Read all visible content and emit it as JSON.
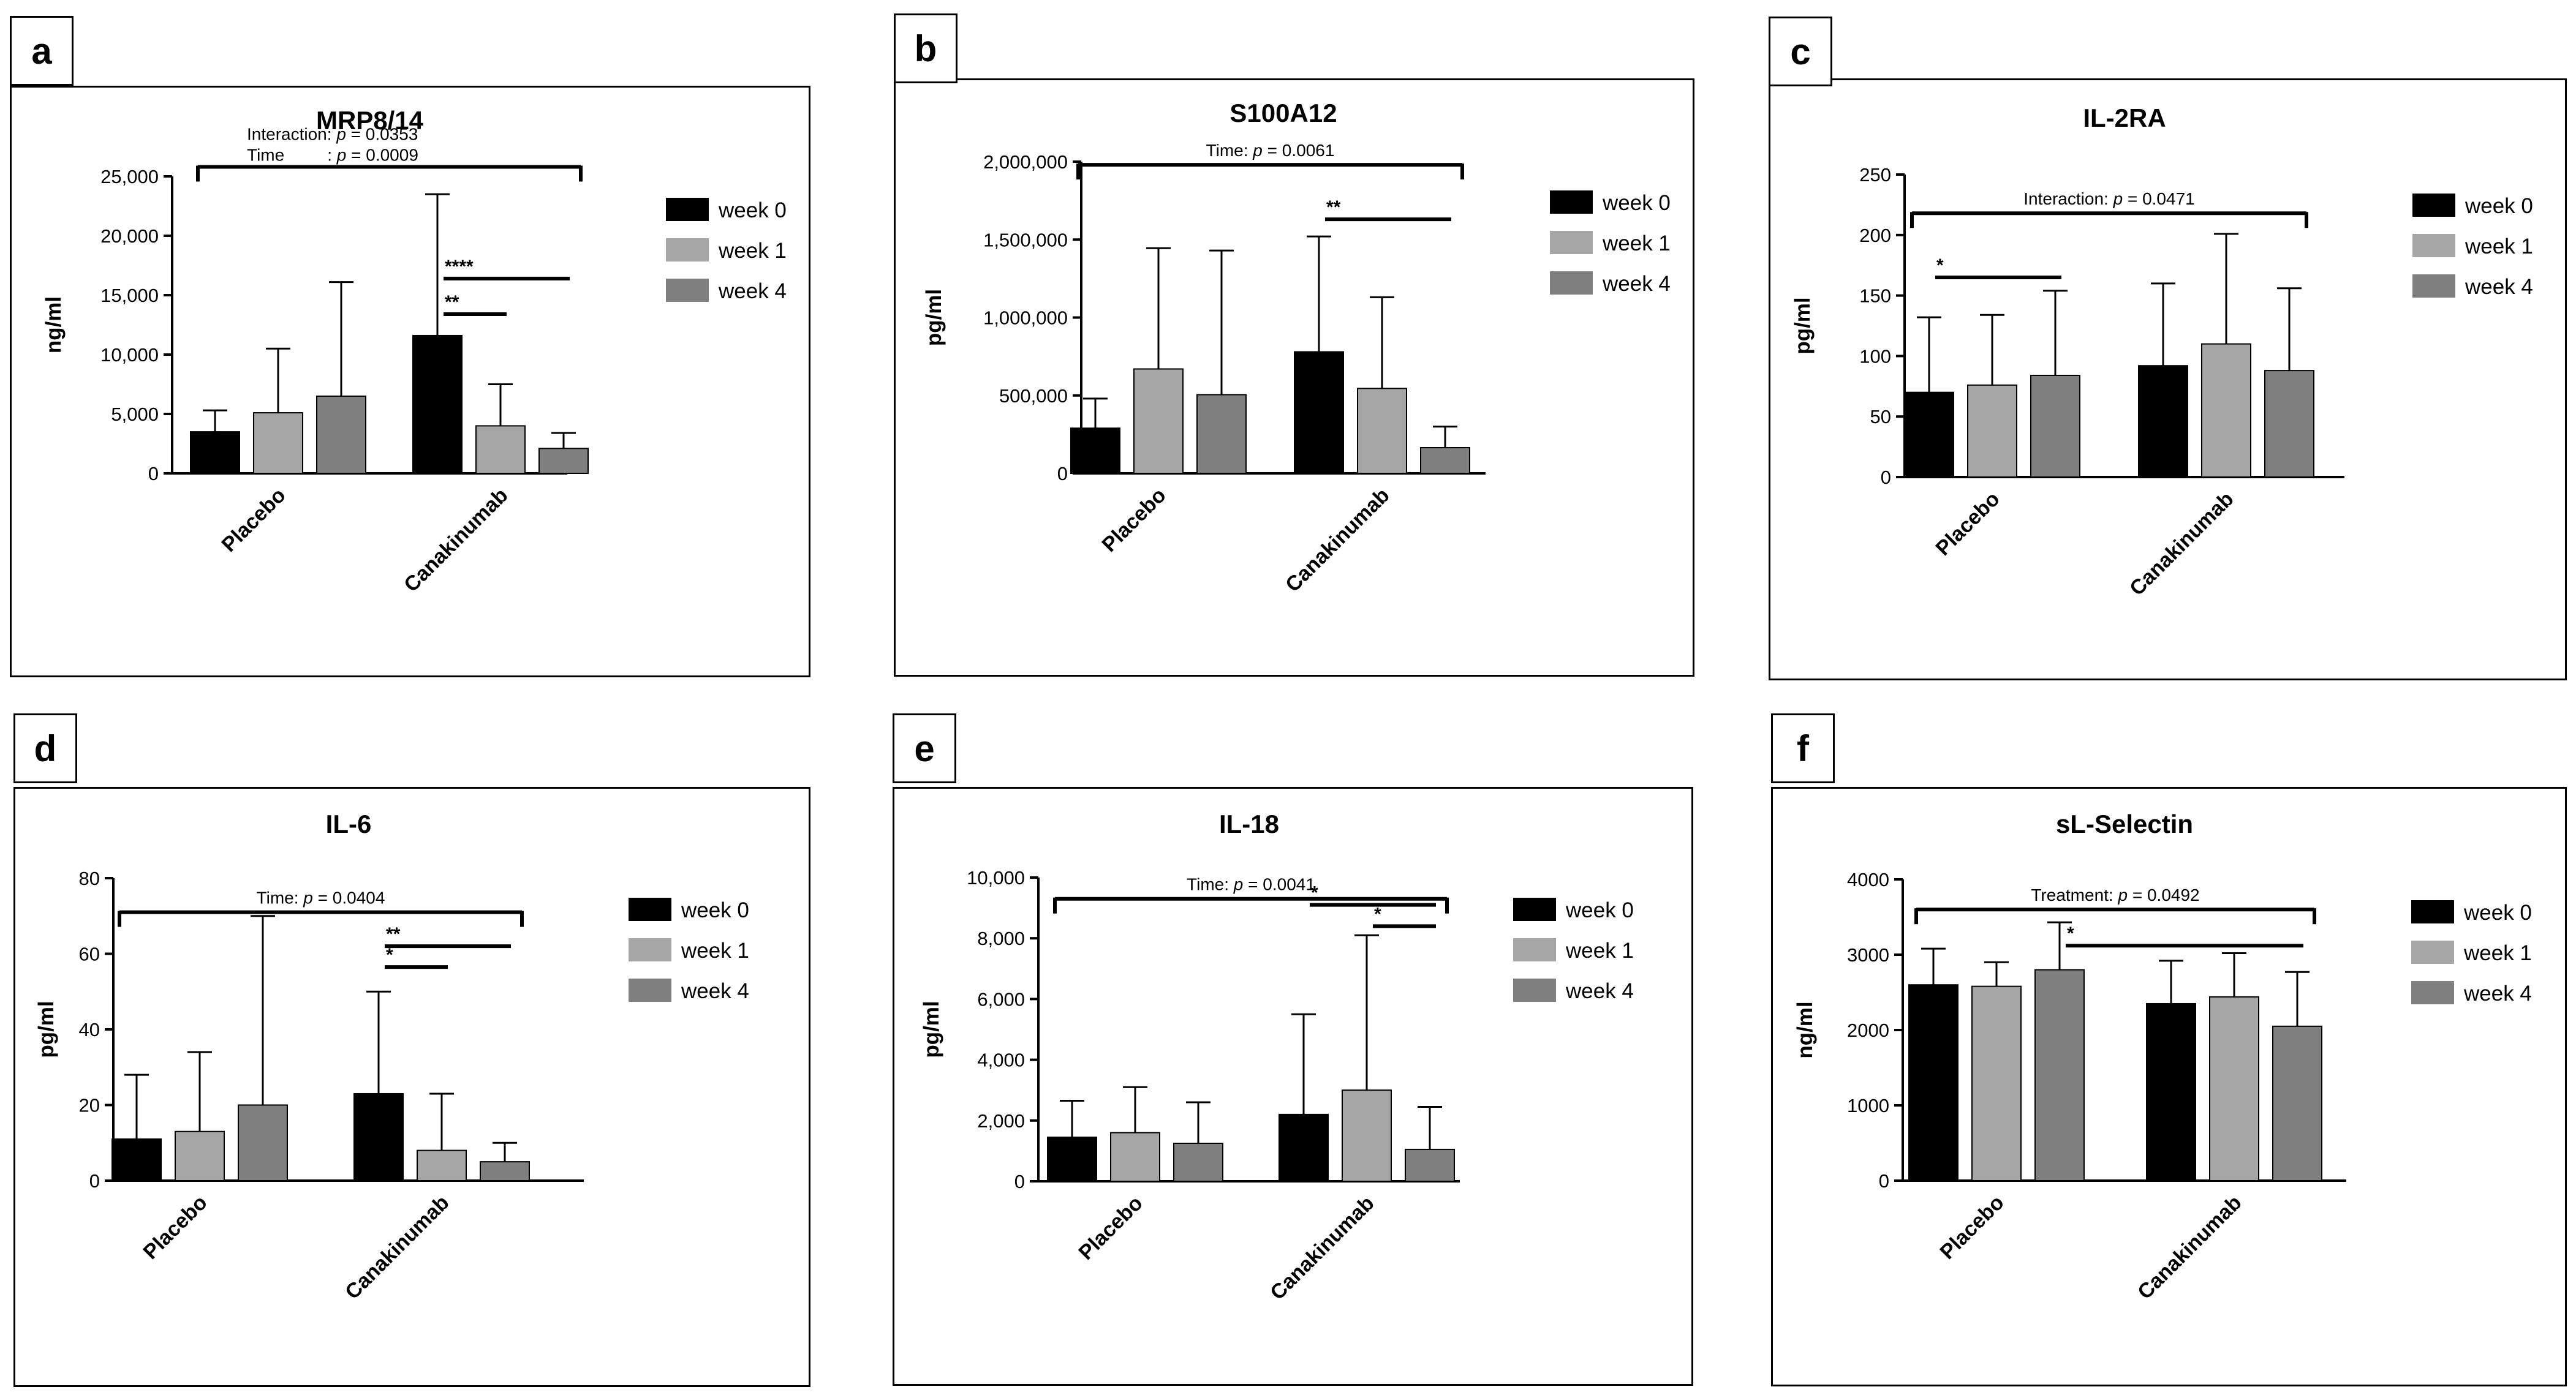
{
  "colors": {
    "week0": "#000000",
    "week1": "#a6a6a6",
    "week2": "#7f7f7f"
  },
  "chart_data": [
    {
      "type": "bar",
      "panel": "a",
      "title": "MRP8/14",
      "ylabel": "ng/ml",
      "categories": [
        "Placebo",
        "Canakinumab"
      ],
      "ylim": [
        0,
        25000
      ],
      "yticks": [
        "0",
        "5,000",
        "10,000",
        "15,000",
        "20,000",
        "25,000"
      ],
      "ytick_values": [
        0,
        5000,
        10000,
        15000,
        20000,
        25000
      ],
      "series": [
        {
          "name": "week 0",
          "values": [
            3500,
            11600
          ],
          "errors": [
            5300,
            23500
          ]
        },
        {
          "name": "week 1",
          "values": [
            5100,
            4000
          ],
          "errors": [
            10500,
            7500
          ]
        },
        {
          "name": "week 4",
          "values": [
            6500,
            2100
          ],
          "errors": [
            16100,
            3400
          ]
        }
      ],
      "annotations": [
        {
          "text_parts": [
            "Interaction: ",
            "p",
            " = 0.0353"
          ],
          "line2_parts": [
            "Time",
            "         : ",
            "p",
            " = 0.0009"
          ],
          "y": 25800,
          "from": [
            0,
            0
          ],
          "to": [
            1,
            2
          ]
        }
      ],
      "stars": [
        {
          "text": "****",
          "from": [
            1,
            0
          ],
          "to": [
            1,
            2
          ],
          "y": 16400
        },
        {
          "text": "**",
          "from": [
            1,
            0
          ],
          "to": [
            1,
            1
          ],
          "y": 13400
        }
      ]
    },
    {
      "type": "bar",
      "panel": "b",
      "title": "S100A12",
      "ylabel": "pg/ml",
      "categories": [
        "Placebo",
        "Canakinumab"
      ],
      "ylim": [
        0,
        2000000
      ],
      "yticks": [
        "0",
        "500,000",
        "1,000,000",
        "1,500,000",
        "2,000,000"
      ],
      "ytick_values": [
        0,
        500000,
        1000000,
        1500000,
        2000000
      ],
      "series": [
        {
          "name": "week 0",
          "values": [
            290000,
            780000
          ],
          "errors": [
            480000,
            1520000
          ]
        },
        {
          "name": "week 1",
          "values": [
            670000,
            545000
          ],
          "errors": [
            1445000,
            1130000
          ]
        },
        {
          "name": "week 4",
          "values": [
            505000,
            165000
          ],
          "errors": [
            1430000,
            300000
          ]
        }
      ],
      "annotations": [
        {
          "text_parts": [
            "Time: ",
            "p",
            " = 0.0061"
          ],
          "y": 1980000,
          "from": [
            0,
            0
          ],
          "to": [
            1,
            2
          ]
        }
      ],
      "stars": [
        {
          "text": "**",
          "from": [
            1,
            0
          ],
          "to": [
            1,
            2
          ],
          "y": 1630000
        }
      ]
    },
    {
      "type": "bar",
      "panel": "c",
      "title": "IL-2RA",
      "ylabel": "pg/ml",
      "categories": [
        "Placebo",
        "Canakinumab"
      ],
      "ylim": [
        0,
        250
      ],
      "yticks": [
        "0",
        "50",
        "100",
        "150",
        "200",
        "250"
      ],
      "ytick_values": [
        0,
        50,
        100,
        150,
        200,
        250
      ],
      "series": [
        {
          "name": "week 0",
          "values": [
            70,
            92
          ],
          "errors": [
            132,
            160
          ]
        },
        {
          "name": "week 1",
          "values": [
            76,
            110
          ],
          "errors": [
            134,
            201
          ]
        },
        {
          "name": "week 4",
          "values": [
            84,
            88
          ],
          "errors": [
            154,
            156
          ]
        }
      ],
      "annotations": [
        {
          "text_parts": [
            "Interaction: ",
            "p",
            " = 0.0471"
          ],
          "y": 218,
          "from": [
            0,
            0
          ],
          "to": [
            1,
            2
          ]
        }
      ],
      "stars": [
        {
          "text": "*",
          "from": [
            0,
            0
          ],
          "to": [
            0,
            2
          ],
          "y": 165
        }
      ]
    },
    {
      "type": "bar",
      "panel": "d",
      "title": "IL-6",
      "ylabel": "pg/ml",
      "categories": [
        "Placebo",
        "Canakinumab"
      ],
      "ylim": [
        0,
        80
      ],
      "yticks": [
        "0",
        "20",
        "40",
        "60",
        "80"
      ],
      "ytick_values": [
        0,
        20,
        40,
        60,
        80
      ],
      "series": [
        {
          "name": "week 0",
          "values": [
            11,
            23
          ],
          "errors": [
            28,
            50
          ]
        },
        {
          "name": "week 1",
          "values": [
            13,
            8
          ],
          "errors": [
            34,
            23
          ]
        },
        {
          "name": "week 4",
          "values": [
            20,
            5
          ],
          "errors": [
            70,
            10
          ]
        }
      ],
      "annotations": [
        {
          "text_parts": [
            "Time: ",
            "p",
            " = 0.0404"
          ],
          "y": 71,
          "from": [
            0,
            0
          ],
          "to": [
            1,
            2
          ]
        }
      ],
      "stars": [
        {
          "text": "**",
          "from": [
            1,
            0
          ],
          "to": [
            1,
            2
          ],
          "y": 62
        },
        {
          "text": "*",
          "from": [
            1,
            0
          ],
          "to": [
            1,
            1
          ],
          "y": 56.5
        }
      ]
    },
    {
      "type": "bar",
      "panel": "e",
      "title": "IL-18",
      "ylabel": "pg/ml",
      "categories": [
        "Placebo",
        "Canakinumab"
      ],
      "ylim": [
        0,
        10000
      ],
      "yticks": [
        "0",
        "2,000",
        "4,000",
        "6,000",
        "8,000",
        "10,000"
      ],
      "ytick_values": [
        0,
        2000,
        4000,
        6000,
        8000,
        10000
      ],
      "series": [
        {
          "name": "week 0",
          "values": [
            1450,
            2200
          ],
          "errors": [
            2650,
            5500
          ]
        },
        {
          "name": "week 1",
          "values": [
            1600,
            3000
          ],
          "errors": [
            3100,
            8100
          ]
        },
        {
          "name": "week 4",
          "values": [
            1250,
            1050
          ],
          "errors": [
            2600,
            2450
          ]
        }
      ],
      "annotations": [
        {
          "text_parts": [
            "Time: ",
            "p",
            " = 0.0041"
          ],
          "y": 9300,
          "from": [
            0,
            0
          ],
          "to": [
            1,
            2
          ]
        }
      ],
      "stars": [
        {
          "text": "*",
          "from": [
            1,
            0
          ],
          "to": [
            1,
            2
          ],
          "y": 9100
        },
        {
          "text": "*",
          "from": [
            1,
            1
          ],
          "to": [
            1,
            2
          ],
          "y": 8400
        }
      ]
    },
    {
      "type": "bar",
      "panel": "f",
      "title": "sL-Selectin",
      "ylabel": "ng/ml",
      "categories": [
        "Placebo",
        "Canakinumab"
      ],
      "ylim": [
        0,
        4000
      ],
      "yticks": [
        "0",
        "1000",
        "2000",
        "3000",
        "4000"
      ],
      "ytick_values": [
        0,
        1000,
        2000,
        3000,
        4000
      ],
      "series": [
        {
          "name": "week 0",
          "values": [
            2600,
            2350
          ],
          "errors": [
            3080,
            2920
          ]
        },
        {
          "name": "week 1",
          "values": [
            2580,
            2440
          ],
          "errors": [
            2900,
            3020
          ]
        },
        {
          "name": "week 4",
          "values": [
            2800,
            2050
          ],
          "errors": [
            3430,
            2770
          ]
        }
      ],
      "annotations": [
        {
          "text_parts": [
            "Treatment: ",
            "p",
            " = 0.0492"
          ],
          "y": 3600,
          "from": [
            0,
            0
          ],
          "to": [
            1,
            2
          ]
        }
      ],
      "stars": [
        {
          "text": "*",
          "from": [
            0,
            2
          ],
          "to": [
            1,
            2
          ],
          "y": 3120
        }
      ]
    }
  ]
}
